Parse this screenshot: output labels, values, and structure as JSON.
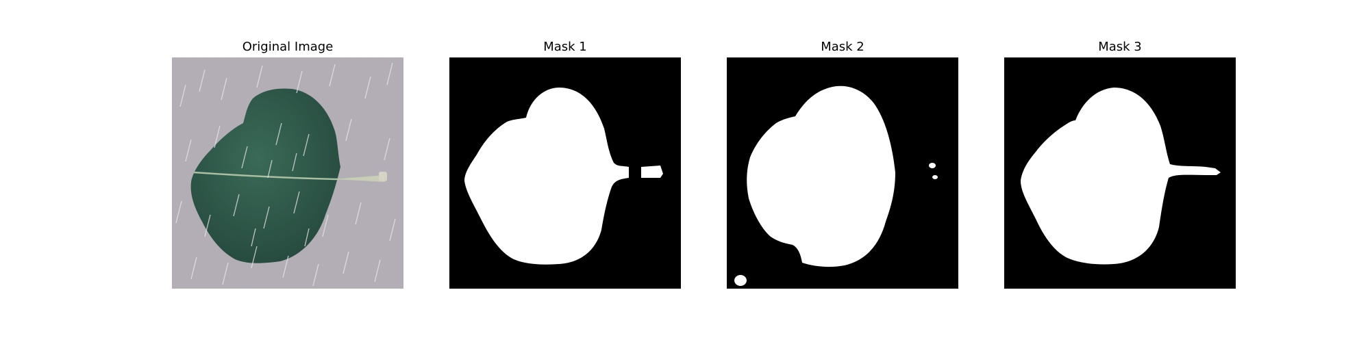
{
  "panels": [
    {
      "title": "Original Image",
      "image": "leaf-photo-with-rain-streaks"
    },
    {
      "title": "Mask 1",
      "image": "binary-leaf-mask-1"
    },
    {
      "title": "Mask 2",
      "image": "binary-leaf-mask-2"
    },
    {
      "title": "Mask 3",
      "image": "binary-leaf-mask-3"
    }
  ],
  "colors": {
    "background": "#ffffff",
    "surface": "#b2adb5",
    "leaf": "#2f5a4c",
    "midrib": "#a8bfa2",
    "stem": "#c9cdb6",
    "mask_bg": "#000000",
    "mask_fg": "#ffffff"
  }
}
